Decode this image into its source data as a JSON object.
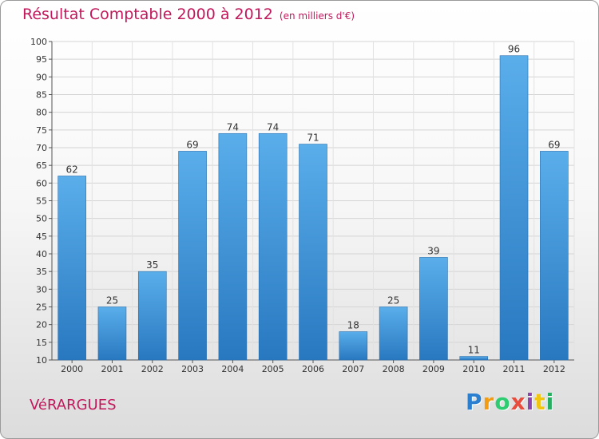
{
  "header": {
    "title": "Résultat Comptable 2000 à 2012",
    "subtitle": "(en milliers d'€)"
  },
  "footer": {
    "commune": "VéRARGUES",
    "brand_letters": [
      "P",
      "r",
      "o",
      "x",
      "i",
      "t",
      "i"
    ],
    "brand_colors": [
      "#2a7fd0",
      "#f39c12",
      "#2ecc71",
      "#e74c3c",
      "#8e44ad",
      "#f1c40f",
      "#27ae60"
    ]
  },
  "chart_data": {
    "type": "bar",
    "categories": [
      "2000",
      "2001",
      "2002",
      "2003",
      "2004",
      "2005",
      "2006",
      "2007",
      "2008",
      "2009",
      "2010",
      "2011",
      "2012"
    ],
    "values": [
      62,
      25,
      35,
      69,
      74,
      74,
      71,
      18,
      25,
      39,
      11,
      96,
      69
    ],
    "title": "Résultat Comptable 2000 à 2012",
    "ylim": [
      10,
      100
    ],
    "yticks": [
      10,
      15,
      20,
      25,
      30,
      35,
      40,
      45,
      50,
      55,
      60,
      65,
      70,
      75,
      80,
      85,
      90,
      95,
      100
    ],
    "grid": true,
    "bar_color": "#3d8fd6"
  }
}
